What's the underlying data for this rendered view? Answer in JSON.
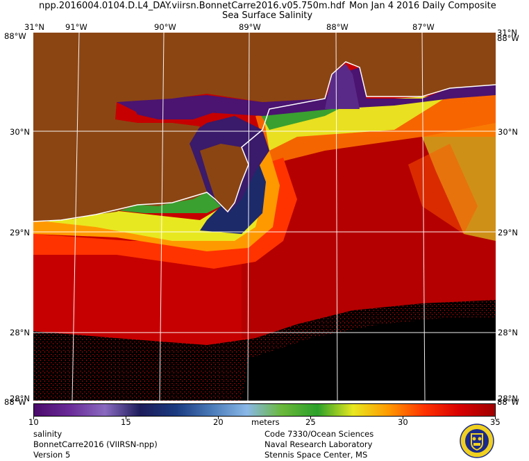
{
  "header": {
    "filename": "npp.2016004.0104.D.L4_DAY.viirsn.BonnetCarre2016.v05.750m.hdf",
    "date": "Mon Jan  4 2016 Daily Composite",
    "product": "Sea Surface Salinity"
  },
  "axes": {
    "top_lat": "31°N",
    "top_right_lat": "31°N",
    "lon_labels": [
      "91°W",
      "90°W",
      "89°W",
      "88°W",
      "87°W"
    ],
    "lat_labels": [
      "30°N",
      "29°N",
      "28°N"
    ],
    "corner_top_left": "88°W",
    "corner_top_right": "88°W",
    "corner_bottom_left": "88°W",
    "corner_bottom_right": "88°W",
    "bottom_left_lat": "28°N",
    "bottom_right_lat": "28°N"
  },
  "colorbar": {
    "ticks": [
      "10",
      "15",
      "20",
      "25",
      "30",
      "35"
    ],
    "unit": "meters",
    "min": 10,
    "max": 35,
    "stops": [
      "#4a0a6b",
      "#6a2a98",
      "#8a6ac0",
      "#1c1c5a",
      "#1a3a80",
      "#4a7ab8",
      "#8ab8e8",
      "#6ab83a",
      "#2aa02a",
      "#e8e820",
      "#ff9900",
      "#ff3300",
      "#d80000",
      "#a00000"
    ]
  },
  "footer": {
    "left_1": "salinity",
    "left_2": "BonnetCarre2016 (VIIRSN-npp)",
    "left_3": "Version 5",
    "right_1": "Code 7330/Ocean Sciences",
    "right_2": "Naval Research Laboratory",
    "right_3": "Stennis Space Center, MS"
  },
  "colors": {
    "land": "#8b4513",
    "ocean_high": "#c80000",
    "nodata": "#000000",
    "grid": "#ffffff"
  }
}
